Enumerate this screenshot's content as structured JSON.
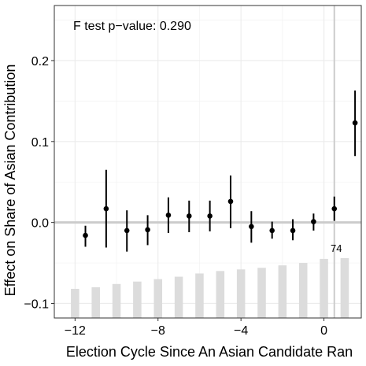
{
  "chart_data": {
    "type": "scatter",
    "title": "",
    "annotation": "F test p−value: 0.290",
    "xlabel": "Election Cycle Since An Asian Candidate Ran",
    "ylabel": "Effect on Share of Asian Contribution",
    "xlim": [
      -13.0,
      1.8
    ],
    "ylim": [
      -0.118,
      0.268
    ],
    "x_ticks": [
      -12,
      -8,
      -4,
      0
    ],
    "x_tick_labels": [
      "−12",
      "−8",
      "−4",
      "0"
    ],
    "y_ticks": [
      -0.1,
      0.0,
      0.1,
      0.2
    ],
    "y_tick_labels": [
      "−0.1",
      "0.0",
      "0.1",
      "0.2"
    ],
    "grid": true,
    "reference_hline": 0.0,
    "reference_vline": 0.5,
    "points": {
      "x": [
        -11.5,
        -10.5,
        -9.5,
        -8.5,
        -7.5,
        -6.5,
        -5.5,
        -4.5,
        -3.5,
        -2.5,
        -1.5,
        -0.5,
        0.5,
        1.5
      ],
      "y": [
        -0.016,
        0.017,
        -0.01,
        -0.009,
        0.009,
        0.008,
        0.008,
        0.026,
        -0.005,
        -0.01,
        -0.01,
        0.001,
        0.017,
        0.123
      ],
      "ci_low": [
        -0.03,
        -0.031,
        -0.036,
        -0.028,
        -0.013,
        -0.012,
        -0.011,
        -0.007,
        -0.025,
        -0.02,
        -0.022,
        -0.01,
        0.002,
        0.082
      ],
      "ci_high": [
        -0.004,
        0.065,
        0.015,
        0.009,
        0.031,
        0.027,
        0.027,
        0.058,
        0.014,
        0.001,
        0.004,
        0.011,
        0.032,
        0.163
      ]
    },
    "histogram": {
      "color": "#dcdcdc",
      "bars": [
        {
          "x": -12,
          "y": -0.082
        },
        {
          "x": -11,
          "y": -0.08
        },
        {
          "x": -10,
          "y": -0.076
        },
        {
          "x": -9,
          "y": -0.073
        },
        {
          "x": -8,
          "y": -0.07
        },
        {
          "x": -7,
          "y": -0.067
        },
        {
          "x": -6,
          "y": -0.063
        },
        {
          "x": -5,
          "y": -0.06
        },
        {
          "x": -4,
          "y": -0.058
        },
        {
          "x": -3,
          "y": -0.056
        },
        {
          "x": -2,
          "y": -0.053
        },
        {
          "x": -1,
          "y": -0.05
        },
        {
          "x": 0,
          "y": -0.045
        },
        {
          "x": 1,
          "y": -0.044
        }
      ],
      "label": "74"
    }
  }
}
